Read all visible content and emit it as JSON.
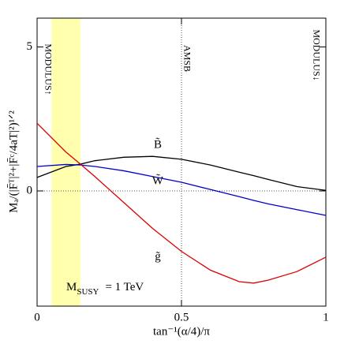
{
  "chart_data": {
    "type": "line",
    "x_label": "tan⁻¹(α/4)/π",
    "y_label": "Mₐ/(|F̄ᵀ|²+|F̄ᶜ/4aT|²)¹ᐟ²",
    "x": [
      0,
      0.1,
      0.15,
      0.2,
      0.3,
      0.4,
      0.5,
      0.6,
      0.7,
      0.75,
      0.8,
      0.9,
      1.0
    ],
    "series": [
      {
        "name": "B̃",
        "color": "#000000",
        "values": [
          0.47,
          0.85,
          0.93,
          1.05,
          1.17,
          1.2,
          1.1,
          0.9,
          0.65,
          0.53,
          0.4,
          0.15,
          0.02
        ]
      },
      {
        "name": "W̃",
        "color": "#0000cc",
        "values": [
          0.85,
          0.92,
          0.9,
          0.85,
          0.7,
          0.5,
          0.3,
          0.05,
          -0.2,
          -0.33,
          -0.45,
          -0.65,
          -0.85
        ]
      },
      {
        "name": "g̃",
        "color": "#dd0000",
        "values": [
          2.35,
          1.35,
          0.93,
          0.5,
          -0.4,
          -1.3,
          -2.1,
          -2.75,
          -3.15,
          -3.2,
          -3.1,
          -2.8,
          -2.3
        ]
      }
    ],
    "xlim": [
      0,
      1
    ],
    "ylim": [
      -4,
      6
    ],
    "xticks": [
      0,
      0.5,
      1
    ],
    "yticks": [
      0,
      5
    ],
    "band": [
      0.05,
      0.15
    ],
    "band_color": "#ffff99",
    "reference_x": 0.5,
    "reference_y": 0,
    "annotations": [
      "MODULUS↑",
      "AMSB",
      "MODULUS↓"
    ],
    "note": {
      "symbol": "M",
      "subscript": "SUSY",
      "text": "= 1 TeV"
    }
  }
}
